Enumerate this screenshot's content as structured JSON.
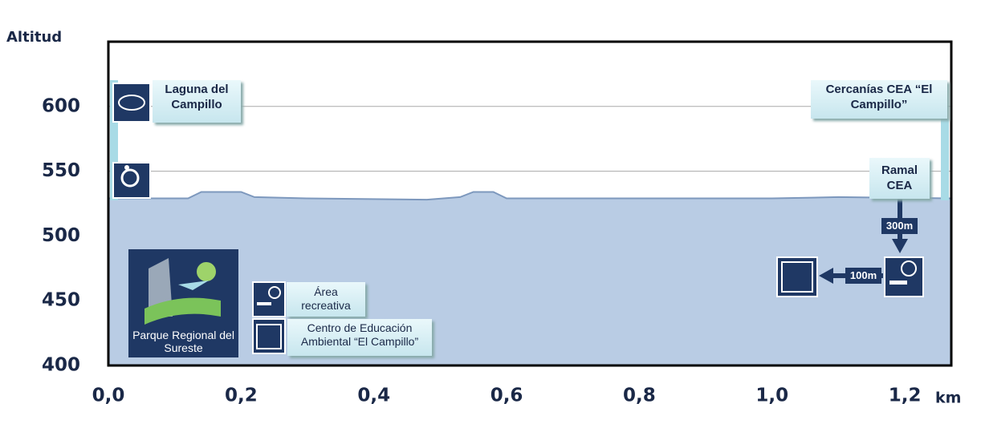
{
  "chart_data": {
    "type": "area",
    "y_label": "Altitud",
    "x_unit": "km",
    "x": [
      0,
      0.12,
      0.14,
      0.2,
      0.22,
      0.3,
      0.48,
      0.53,
      0.55,
      0.58,
      0.6,
      0.8,
      1.0,
      1.1,
      1.27
    ],
    "values": [
      529,
      529,
      534,
      534,
      530,
      529,
      528,
      530,
      534,
      534,
      529,
      529,
      529,
      530,
      529
    ],
    "color": "#b9cce4",
    "xlim": [
      0,
      1.27
    ],
    "ylim": [
      400,
      650
    ],
    "xticks": [
      {
        "value": 0,
        "label": "0,0"
      },
      {
        "value": 0.2,
        "label": "0,2"
      },
      {
        "value": 0.4,
        "label": "0,4"
      },
      {
        "value": 0.6,
        "label": "0,6"
      },
      {
        "value": 0.8,
        "label": "0,8"
      },
      {
        "value": 1.0,
        "label": "1,0"
      },
      {
        "value": 1.2,
        "label": "1,2"
      }
    ],
    "yticks": [
      400,
      450,
      500,
      550,
      600
    ],
    "grid": true,
    "annotations": {
      "laguna": "Laguna del Campillo",
      "cercanias": "Cercanías CEA “El Campillo”",
      "ramal": "Ramal CEA",
      "d300": "300m",
      "d100": "100m",
      "area": "Área recreativa",
      "centro": "Centro de Educación Ambiental “El Campillo”",
      "parque": "Parque Regional del Sureste"
    }
  }
}
